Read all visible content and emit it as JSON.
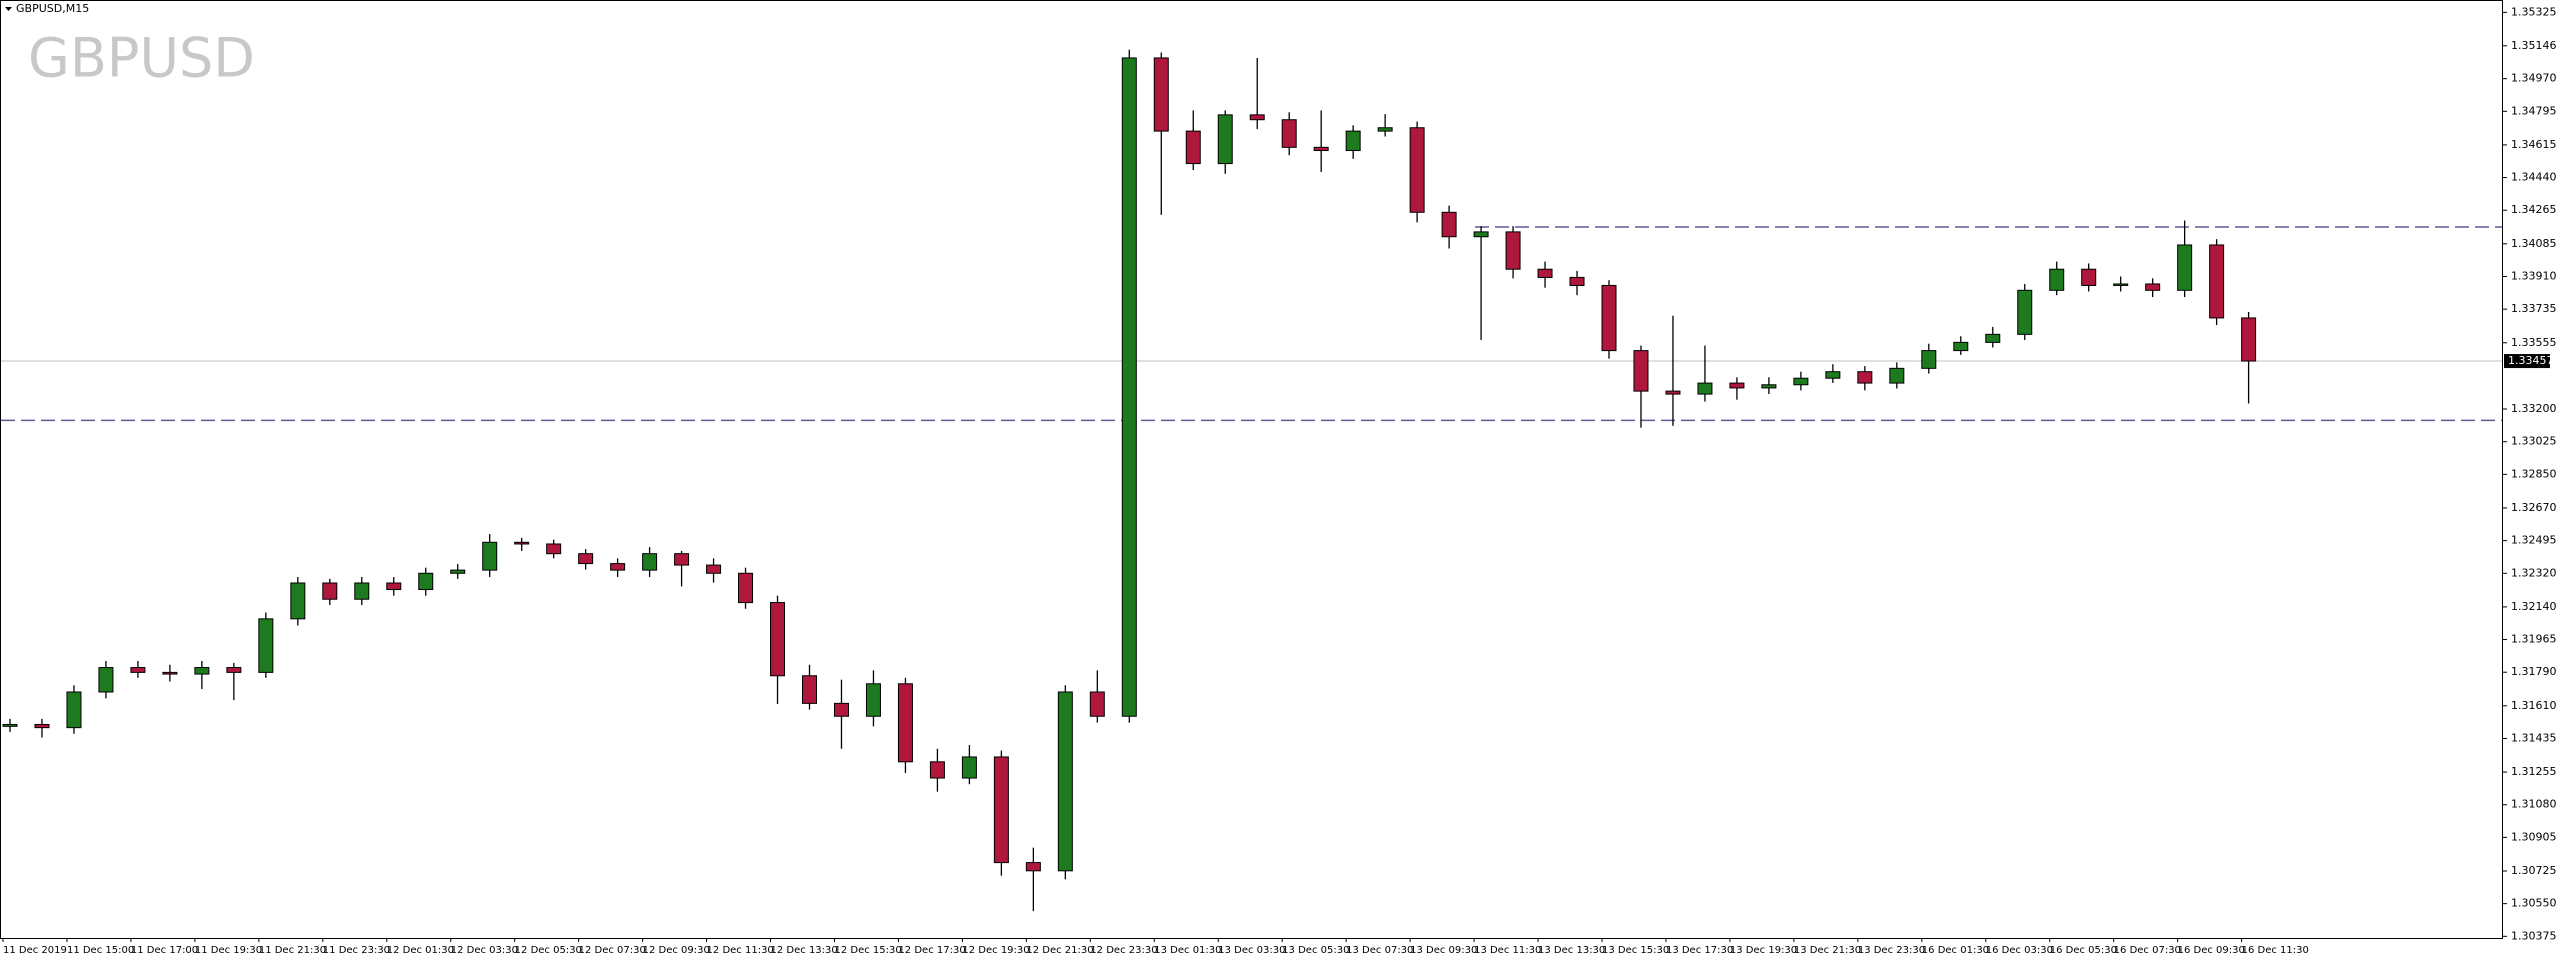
{
  "chart_data": {
    "type": "candlestick",
    "title": "GBPUSD,M15",
    "watermark": "GBPUSD",
    "categories": [
      "11 Dec 2019",
      null,
      "11 Dec 15:00",
      null,
      "11 Dec 17:00",
      null,
      "11 Dec 19:30",
      null,
      "11 Dec 21:30",
      null,
      "11 Dec 23:30",
      null,
      "12 Dec 01:30",
      null,
      "12 Dec 03:30",
      null,
      "12 Dec 05:30",
      null,
      "12 Dec 07:30",
      null,
      "12 Dec 09:30",
      null,
      "12 Dec 11:30",
      null,
      "12 Dec 13:30",
      null,
      "12 Dec 15:30",
      null,
      "12 Dec 17:30",
      null,
      "12 Dec 19:30",
      null,
      "12 Dec 21:30",
      null,
      "12 Dec 23:30",
      null,
      "13 Dec 01:30",
      null,
      "13 Dec 03:30",
      null,
      "13 Dec 05:30",
      null,
      "13 Dec 07:30",
      null,
      "13 Dec 09:30",
      null,
      "13 Dec 11:30",
      null,
      "13 Dec 13:30",
      null,
      "13 Dec 15:30",
      null,
      "13 Dec 17:30",
      null,
      "13 Dec 19:30",
      null,
      "13 Dec 21:30",
      null,
      "13 Dec 23:30",
      null,
      "16 Dec 01:30",
      null,
      "16 Dec 03:30",
      null,
      "16 Dec 05:30",
      null,
      "16 Dec 07:30",
      null,
      "16 Dec 09:30",
      null,
      "16 Dec 11:30"
    ],
    "open": [
      1.315,
      1.3151,
      1.31493,
      1.31684,
      1.31815,
      1.31789,
      1.3178,
      1.31815,
      1.31789,
      1.32076,
      1.32268,
      1.32181,
      1.32268,
      1.32233,
      1.3232,
      1.32337,
      1.32486,
      1.32477,
      1.32425,
      1.32372,
      1.32337,
      1.32425,
      1.32364,
      1.3232,
      1.32163,
      1.31771,
      1.31623,
      1.31554,
      1.31728,
      1.3131,
      1.31223,
      1.31336,
      1.3077,
      1.30726,
      1.31684,
      1.31554,
      1.35081,
      1.34689,
      1.34515,
      1.34776,
      1.3475,
      1.34602,
      1.34585,
      1.34689,
      1.34707,
      1.34254,
      1.34123,
      1.34149,
      1.33949,
      1.33905,
      1.33862,
      1.33513,
      1.33296,
      1.3328,
      1.33339,
      1.33313,
      1.3333,
      1.33365,
      1.334,
      1.33339,
      1.33418,
      1.33513,
      1.33557,
      1.336,
      1.33836,
      1.33949,
      1.33862,
      1.3387,
      1.33836,
      1.34079,
      1.33688
    ],
    "high": [
      1.3154,
      1.3154,
      1.3172,
      1.3185,
      1.3185,
      1.3183,
      1.3185,
      1.3184,
      1.3211,
      1.323,
      1.3229,
      1.323,
      1.323,
      1.3235,
      1.3237,
      1.3253,
      1.3251,
      1.325,
      1.3245,
      1.324,
      1.3246,
      1.3244,
      1.324,
      1.3235,
      1.322,
      1.3183,
      1.3175,
      1.318,
      1.3176,
      1.3138,
      1.314,
      1.3137,
      1.3085,
      1.3172,
      1.318,
      1.35125,
      1.3511,
      1.348,
      1.348,
      1.35081,
      1.3479,
      1.348,
      1.3472,
      1.3478,
      1.3474,
      1.3429,
      1.3418,
      1.3418,
      1.3399,
      1.3394,
      1.3389,
      1.3354,
      1.337,
      1.3354,
      1.3337,
      1.3337,
      1.334,
      1.3344,
      1.3343,
      1.3345,
      1.3355,
      1.3359,
      1.3364,
      1.3387,
      1.3399,
      1.3398,
      1.3391,
      1.339,
      1.3421,
      1.3411,
      1.3372
    ],
    "low": [
      1.3147,
      1.3144,
      1.3146,
      1.3165,
      1.3176,
      1.3174,
      1.317,
      1.3164,
      1.3176,
      1.3204,
      1.3215,
      1.3215,
      1.322,
      1.322,
      1.3229,
      1.323,
      1.3244,
      1.324,
      1.3234,
      1.323,
      1.323,
      1.3225,
      1.3227,
      1.3213,
      1.3162,
      1.3159,
      1.3138,
      1.315,
      1.3125,
      1.3115,
      1.3119,
      1.307,
      1.3051,
      1.3068,
      1.3152,
      1.3152,
      1.3424,
      1.3448,
      1.3446,
      1.347,
      1.3456,
      1.3447,
      1.3454,
      1.3466,
      1.342,
      1.3406,
      1.3357,
      1.339,
      1.3385,
      1.3381,
      1.3347,
      1.331,
      1.3311,
      1.3324,
      1.3325,
      1.3328,
      1.333,
      1.3334,
      1.333,
      1.3331,
      1.3339,
      1.3349,
      1.3353,
      1.3357,
      1.3381,
      1.3383,
      1.3383,
      1.338,
      1.338,
      1.3365,
      1.3323
    ],
    "close": [
      1.3151,
      1.31493,
      1.31684,
      1.31815,
      1.31789,
      1.3178,
      1.31815,
      1.31789,
      1.32076,
      1.32268,
      1.32181,
      1.32268,
      1.32233,
      1.3232,
      1.32337,
      1.32486,
      1.32477,
      1.32425,
      1.32372,
      1.32337,
      1.32425,
      1.32364,
      1.3232,
      1.32163,
      1.31771,
      1.31623,
      1.31554,
      1.31728,
      1.3131,
      1.31223,
      1.31336,
      1.3077,
      1.30726,
      1.31684,
      1.31554,
      1.35081,
      1.34689,
      1.34515,
      1.34776,
      1.3475,
      1.34602,
      1.34585,
      1.34689,
      1.34707,
      1.34254,
      1.34123,
      1.34149,
      1.33949,
      1.33905,
      1.33862,
      1.33513,
      1.33296,
      1.3328,
      1.33339,
      1.33313,
      1.3333,
      1.33365,
      1.334,
      1.33339,
      1.33418,
      1.33513,
      1.33557,
      1.336,
      1.33836,
      1.33949,
      1.33862,
      1.3387,
      1.33836,
      1.34079,
      1.33688,
      1.33457
    ],
    "up_color": "#1e7a1e",
    "down_color": "#b0173c",
    "level_color": "#5c5c96",
    "levels": [
      1.34175,
      1.33139
    ],
    "ylim": [
      1.30366,
      1.35386
    ],
    "yticks": [
      1.35325,
      1.35146,
      {
        "value": 1.3497,
        "label": "1.34970"
      },
      1.34795,
      1.34615,
      {
        "value": 1.3444,
        "label": "1.34440"
      },
      1.34265,
      1.34085,
      {
        "value": 1.3391,
        "label": "1.33910"
      },
      1.33735,
      1.33555,
      {
        "value": 1.332,
        "label": "1.33200"
      },
      1.33025,
      {
        "value": 1.3285,
        "label": "1.32850"
      },
      {
        "value": 1.3267,
        "label": "1.32670"
      },
      1.32495,
      {
        "value": 1.3232,
        "label": "1.32320"
      },
      {
        "value": 1.3214,
        "label": "1.32140"
      },
      1.31965,
      {
        "value": 1.3179,
        "label": "1.31790"
      },
      {
        "value": 1.3161,
        "label": "1.31610"
      },
      1.31435,
      1.31255,
      {
        "value": 1.3108,
        "label": "1.31080"
      },
      1.30905,
      1.30725,
      {
        "value": 1.3055,
        "label": "1.30550"
      },
      1.30375
    ]
  }
}
